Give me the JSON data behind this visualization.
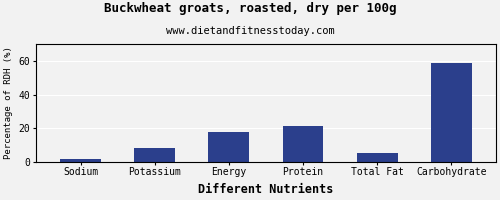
{
  "title": "Buckwheat groats, roasted, dry per 100g",
  "subtitle": "www.dietandfitnesstoday.com",
  "xlabel": "Different Nutrients",
  "ylabel": "Percentage of RDH (%)",
  "categories": [
    "Sodium",
    "Potassium",
    "Energy",
    "Protein",
    "Total Fat",
    "Carbohydrate"
  ],
  "values": [
    1.5,
    8.0,
    17.5,
    21.5,
    5.0,
    58.5
  ],
  "bar_color": "#2b3f8c",
  "ylim": [
    0,
    70
  ],
  "yticks": [
    0,
    20,
    40,
    60
  ],
  "background_color": "#f2f2f2",
  "title_fontsize": 9,
  "subtitle_fontsize": 7.5,
  "tick_fontsize": 7,
  "xlabel_fontsize": 8.5,
  "ylabel_fontsize": 6.5,
  "bar_width": 0.55
}
